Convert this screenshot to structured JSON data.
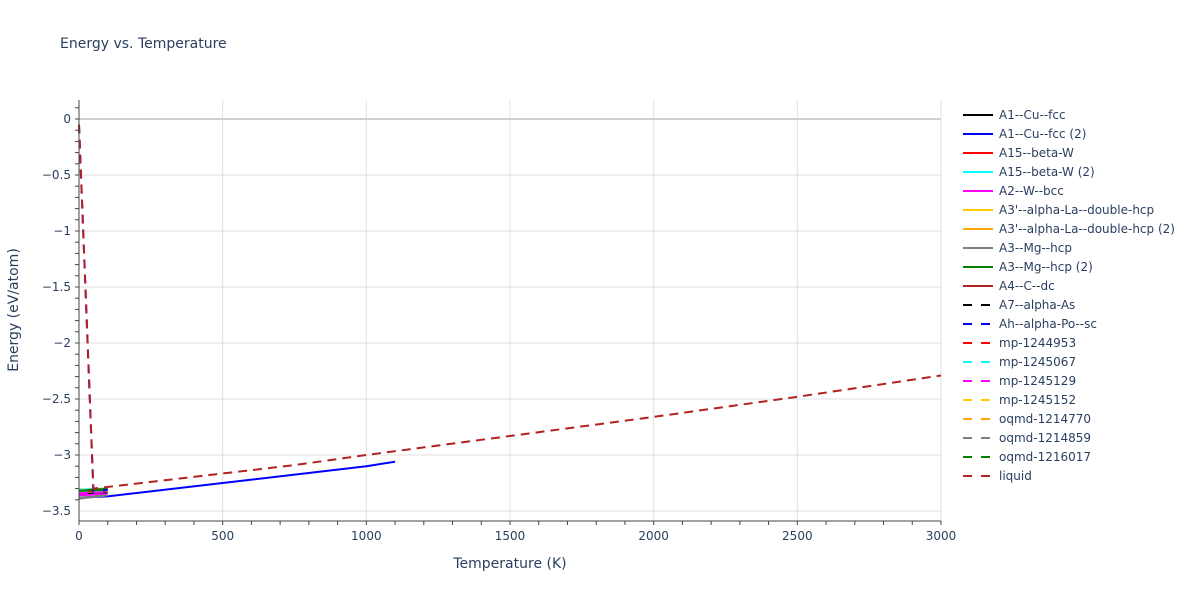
{
  "chart_data": {
    "type": "line",
    "title": "Energy vs. Temperature",
    "xlabel": "Temperature (K)",
    "ylabel": "Energy (eV/atom)",
    "xlim": [
      0,
      3000
    ],
    "ylim": [
      -3.55,
      0.15
    ],
    "x_ticks": [
      0,
      500,
      1000,
      1500,
      2000,
      2500,
      3000
    ],
    "y_ticks": [
      0,
      -0.5,
      -1,
      -1.5,
      -2,
      -2.5,
      -3,
      -3.5
    ],
    "y_tick_labels": [
      "0",
      "−0.5",
      "−1",
      "−1.5",
      "−2",
      "−2.5",
      "−3",
      "−3.5"
    ],
    "grid": true,
    "legend_position": "right",
    "series": [
      {
        "name": "A1--Cu--fcc",
        "color": "#000000",
        "dash": "solid",
        "x": [
          0,
          100
        ],
        "y": [
          -3.35,
          -3.34
        ]
      },
      {
        "name": "A1--Cu--fcc (2)",
        "color": "#0000ff",
        "dash": "solid",
        "x": [
          0,
          100,
          500,
          1000,
          1100
        ],
        "y": [
          -3.38,
          -3.37,
          -3.25,
          -3.1,
          -3.06
        ]
      },
      {
        "name": "A15--beta-W",
        "color": "#ff0000",
        "dash": "solid",
        "x": [
          0,
          100
        ],
        "y": [
          -3.31,
          -3.3
        ]
      },
      {
        "name": "A15--beta-W (2)",
        "color": "#00ffff",
        "dash": "solid",
        "x": [
          0,
          100
        ],
        "y": [
          -3.31,
          -3.3
        ]
      },
      {
        "name": "A2--W--bcc",
        "color": "#ff00ff",
        "dash": "solid",
        "x": [
          0,
          100
        ],
        "y": [
          -3.36,
          -3.35
        ]
      },
      {
        "name": "A3'--alpha-La--double-hcp",
        "color": "#ffcc00",
        "dash": "solid",
        "x": [
          0,
          100
        ],
        "y": [
          -3.32,
          -3.3
        ]
      },
      {
        "name": "A3'--alpha-La--double-hcp (2)",
        "color": "#ffa500",
        "dash": "solid",
        "x": [
          0,
          100
        ],
        "y": [
          -3.32,
          -3.3
        ]
      },
      {
        "name": "A3--Mg--hcp",
        "color": "#808080",
        "dash": "solid",
        "x": [
          0,
          100
        ],
        "y": [
          -3.39,
          -3.36
        ]
      },
      {
        "name": "A3--Mg--hcp (2)",
        "color": "#008000",
        "dash": "solid",
        "x": [
          0,
          100
        ],
        "y": [
          -3.32,
          -3.3
        ]
      },
      {
        "name": "A4--C--dc",
        "color": "#b22222",
        "dash": "solid",
        "x": [
          0,
          100
        ],
        "y": [
          -3.33,
          -3.32
        ]
      },
      {
        "name": "A7--alpha-As",
        "color": "#000000",
        "dash": "dash",
        "x": [
          0,
          100
        ],
        "y": [
          -3.33,
          -3.32
        ]
      },
      {
        "name": "Ah--alpha-Po--sc",
        "color": "#0000ff",
        "dash": "dash",
        "x": [
          0,
          50,
          50,
          100
        ],
        "y": [
          -0.05,
          -3.32,
          -3.32,
          -3.31
        ]
      },
      {
        "name": "mp-1244953",
        "color": "#ff0000",
        "dash": "dash",
        "x": [
          0,
          100
        ],
        "y": [
          -3.33,
          -3.32
        ]
      },
      {
        "name": "mp-1245067",
        "color": "#00ffff",
        "dash": "dash",
        "x": [
          0,
          100
        ],
        "y": [
          -3.33,
          -3.32
        ]
      },
      {
        "name": "mp-1245129",
        "color": "#ff00ff",
        "dash": "dash",
        "x": [
          0,
          100
        ],
        "y": [
          -3.34,
          -3.33
        ]
      },
      {
        "name": "mp-1245152",
        "color": "#ffcc00",
        "dash": "dash",
        "x": [
          0,
          100
        ],
        "y": [
          -3.32,
          -3.31
        ]
      },
      {
        "name": "oqmd-1214770",
        "color": "#ffa500",
        "dash": "dash",
        "x": [
          0,
          100
        ],
        "y": [
          -3.32,
          -3.31
        ]
      },
      {
        "name": "oqmd-1214859",
        "color": "#808080",
        "dash": "dash",
        "x": [
          0,
          100
        ],
        "y": [
          -3.38,
          -3.36
        ]
      },
      {
        "name": "oqmd-1216017",
        "color": "#008000",
        "dash": "dash",
        "x": [
          0,
          100
        ],
        "y": [
          -3.32,
          -3.31
        ]
      },
      {
        "name": "liquid",
        "color": "#b22222",
        "dash": "dash",
        "x": [
          0,
          50,
          750,
          1000,
          1500,
          2000,
          2500,
          3000
        ],
        "y": [
          -0.05,
          -3.3,
          -3.09,
          -3.0,
          -2.83,
          -2.66,
          -2.48,
          -2.29
        ]
      }
    ]
  }
}
